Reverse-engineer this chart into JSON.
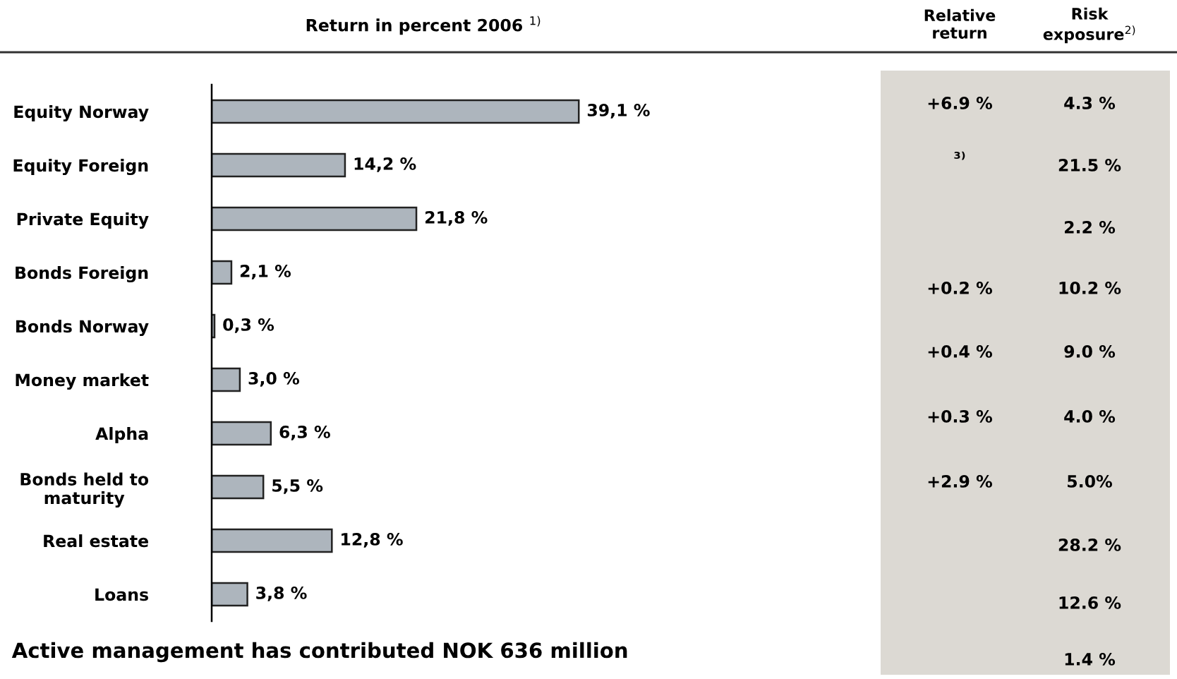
{
  "chart_data": {
    "type": "bar",
    "orientation": "horizontal",
    "title": "Return in percent 2006 $^{1)}$",
    "categories": [
      "Equity Norway",
      "Equity Foreign",
      "Private Equity",
      "Bonds Foreign",
      "Bonds Norway",
      "Money market",
      "Alpha",
      "Bonds held to\nmaturity",
      "Real estate",
      "Loans"
    ],
    "values": [
      39.1,
      14.2,
      21.8,
      2.1,
      0.3,
      3.0,
      6.3,
      5.5,
      12.8,
      3.8
    ],
    "value_labels": [
      "39,1 %",
      "14,2 %",
      "21,8 %",
      "2,1 %",
      "0,3 %",
      "3,0 %",
      "6,3 %",
      "5,5 %",
      "12,8 %",
      "3,8 %"
    ],
    "color": "#adb5bd",
    "tick_labels": "y",
    "grid": false,
    "legend": false,
    "annotations": [
      "Active management has contributed NOK 636 million",
      "Relative\nreturn",
      "Risk\nexposure$^{2)}$",
      "+6.9 %",
      "³⁾",
      "+0.2 %",
      "+0.4 %",
      "+0.3 %",
      "+2.9 %",
      "4.3 %",
      "21.5 %",
      "2.2 %",
      "10.2 %",
      "9.0 %",
      "4.0 %",
      "5.0%",
      "28.2 %",
      "12.6 %",
      "1.4 %"
    ]
  }
}
